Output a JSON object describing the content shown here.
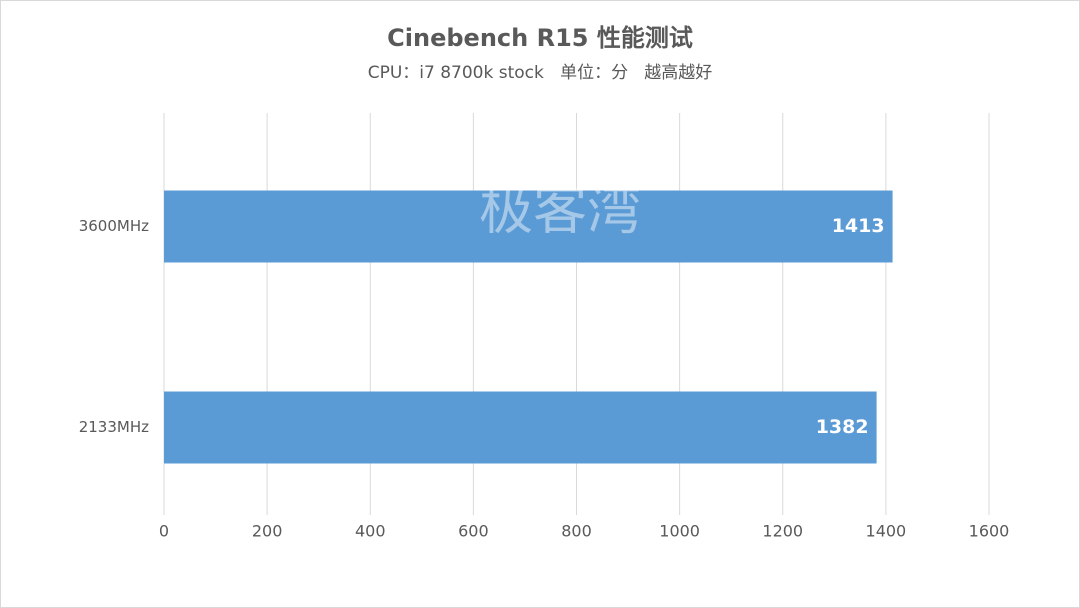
{
  "chart_data": {
    "type": "hbar",
    "title": "Cinebench R15 性能测试",
    "subtitle": "CPU：i7 8700k stock   单位：分   越高越好",
    "watermark": "极客湾",
    "categories": [
      "3600MHz",
      "2133MHz"
    ],
    "values": [
      1413,
      1382
    ],
    "color": "#5b9bd5",
    "xlim": [
      0,
      1600
    ],
    "xticks": [
      0,
      200,
      400,
      600,
      800,
      1000,
      1200,
      1400,
      1600
    ],
    "grid": true
  }
}
